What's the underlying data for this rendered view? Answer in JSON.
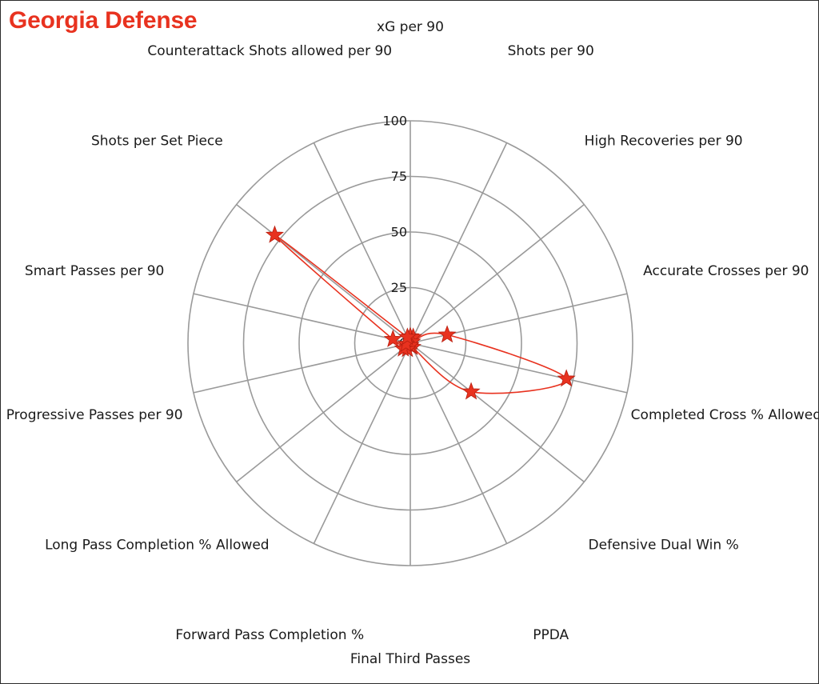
{
  "chart_data": {
    "type": "radar",
    "title": "Georgia Defense",
    "title_color": "#e8321f",
    "series_color": "#e8321f",
    "grid_color": "#9a9a9a",
    "marker": "star",
    "rlim": [
      0,
      100
    ],
    "rticks": [
      0,
      25,
      50,
      75,
      100
    ],
    "rtick_labels": [
      "0",
      "25",
      "50",
      "75",
      "100"
    ],
    "axes": [
      "xG per 90",
      "Shots per 90",
      "High Recoveries per 90",
      "Accurate Crosses per 90",
      "Completed Cross % Allowed",
      "Defensive Dual Win %",
      "PPDA",
      "Final Third Passes",
      "Forward Pass Completion %",
      "Long Pass Completion % Allowed",
      "Progressive Passes per 90",
      "Smart Passes per 90",
      "Shots per Set Piece",
      "Counterattack Shots allowed per 90"
    ],
    "series": [
      {
        "values": [
          3,
          3,
          1,
          17,
          72,
          35,
          2,
          1,
          3,
          4,
          2,
          8,
          78,
          3
        ]
      }
    ]
  }
}
